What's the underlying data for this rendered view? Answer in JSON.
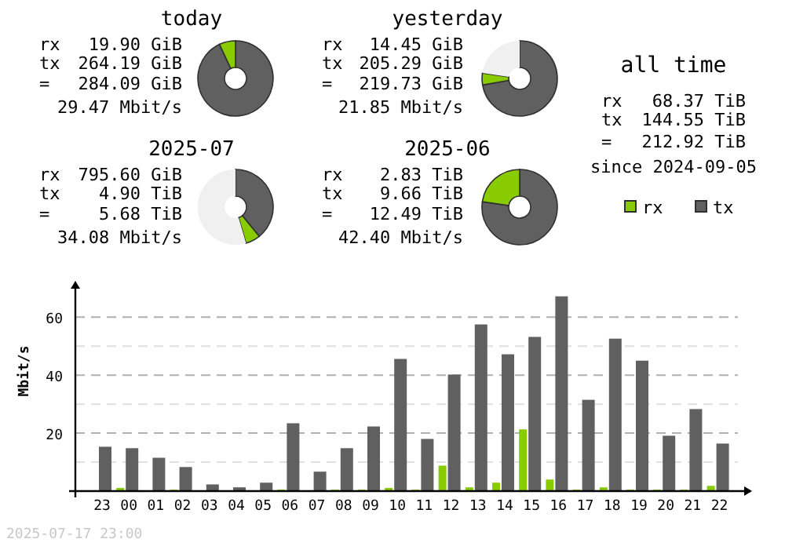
{
  "chart_data": [
    {
      "type": "donut",
      "title": "today",
      "categories": [
        null,
        null,
        null
      ],
      "values": [
        93.0,
        7.0,
        0
      ],
      "colors": [
        "#606060",
        "#88cc00",
        "#f0f0f0"
      ],
      "annotations": [
        "rx 19.90 GiB",
        "tx 264.19 GiB",
        "= 284.09 GiB",
        "29.47 Mbit/s"
      ]
    },
    {
      "type": "donut",
      "title": "yesterday",
      "categories": [
        null,
        null,
        null
      ],
      "values": [
        72.2,
        5.1,
        22.7
      ],
      "colors": [
        "#606060",
        "#88cc00",
        "#f0f0f0"
      ],
      "annotations": [
        "rx 14.45 GiB",
        "tx 205.29 GiB",
        "= 219.73 GiB",
        "21.85 Mbit/s"
      ]
    },
    {
      "type": "other",
      "title": "all time",
      "annotations": [
        "rx 68.37 TiB",
        "tx 144.55 TiB",
        "= 212.92 TiB",
        "since 2024-09-05"
      ]
    },
    {
      "type": "donut",
      "title": "2025-07",
      "categories": [
        null,
        null,
        null
      ],
      "values": [
        39.2,
        6.3,
        54.5
      ],
      "colors": [
        "#606060",
        "#88cc00",
        "#f0f0f0"
      ],
      "annotations": [
        "rx 795.60 GiB",
        "tx 4.90 TiB",
        "= 5.68 TiB",
        "34.08 Mbit/s"
      ]
    },
    {
      "type": "donut",
      "title": "2025-06",
      "categories": [
        null,
        null,
        null
      ],
      "values": [
        77.3,
        22.7,
        0
      ],
      "colors": [
        "#606060",
        "#88cc00",
        "#f0f0f0"
      ],
      "annotations": [
        "rx 2.83 TiB",
        "tx 9.66 TiB",
        "= 12.49 TiB",
        "42.40 Mbit/s"
      ]
    },
    {
      "type": "bar",
      "ylabel": "Mbit/s",
      "categories": [
        "23",
        "00",
        "01",
        "02",
        "03",
        "04",
        "05",
        "06",
        "07",
        "08",
        "09",
        "10",
        "11",
        "12",
        "13",
        "14",
        "15",
        "16",
        "17",
        "18",
        "19",
        "20",
        "21",
        "22"
      ],
      "series": [
        {
          "name": "rx",
          "color": "#88cc00",
          "values": [
            0,
            1.1,
            0,
            0.5,
            0,
            0,
            0,
            0.5,
            0,
            0.5,
            0.5,
            1.1,
            0.5,
            8.8,
            1.3,
            2.9,
            21.3,
            4.0,
            0.5,
            1.3,
            0.5,
            0.5,
            0.5,
            1.8
          ]
        },
        {
          "name": "tx",
          "color": "#606060",
          "values": [
            15.3,
            14.8,
            11.5,
            8.3,
            2.3,
            1.3,
            2.9,
            23.4,
            6.7,
            14.8,
            22.3,
            45.6,
            18.0,
            40.2,
            57.5,
            47.2,
            53.2,
            67.2,
            31.5,
            52.6,
            45.0,
            19.1,
            28.3,
            16.4
          ]
        }
      ],
      "ylim": [
        0,
        72
      ],
      "yticks": [
        {
          "value": 0,
          "label": null
        },
        {
          "value": 10,
          "label": null
        },
        20,
        {
          "value": 30,
          "label": null
        },
        40,
        {
          "value": 50,
          "label": null
        },
        60
      ],
      "grid": "y",
      "legend": "top right",
      "annotations": [
        "2025-07-17 23:00"
      ]
    }
  ]
}
